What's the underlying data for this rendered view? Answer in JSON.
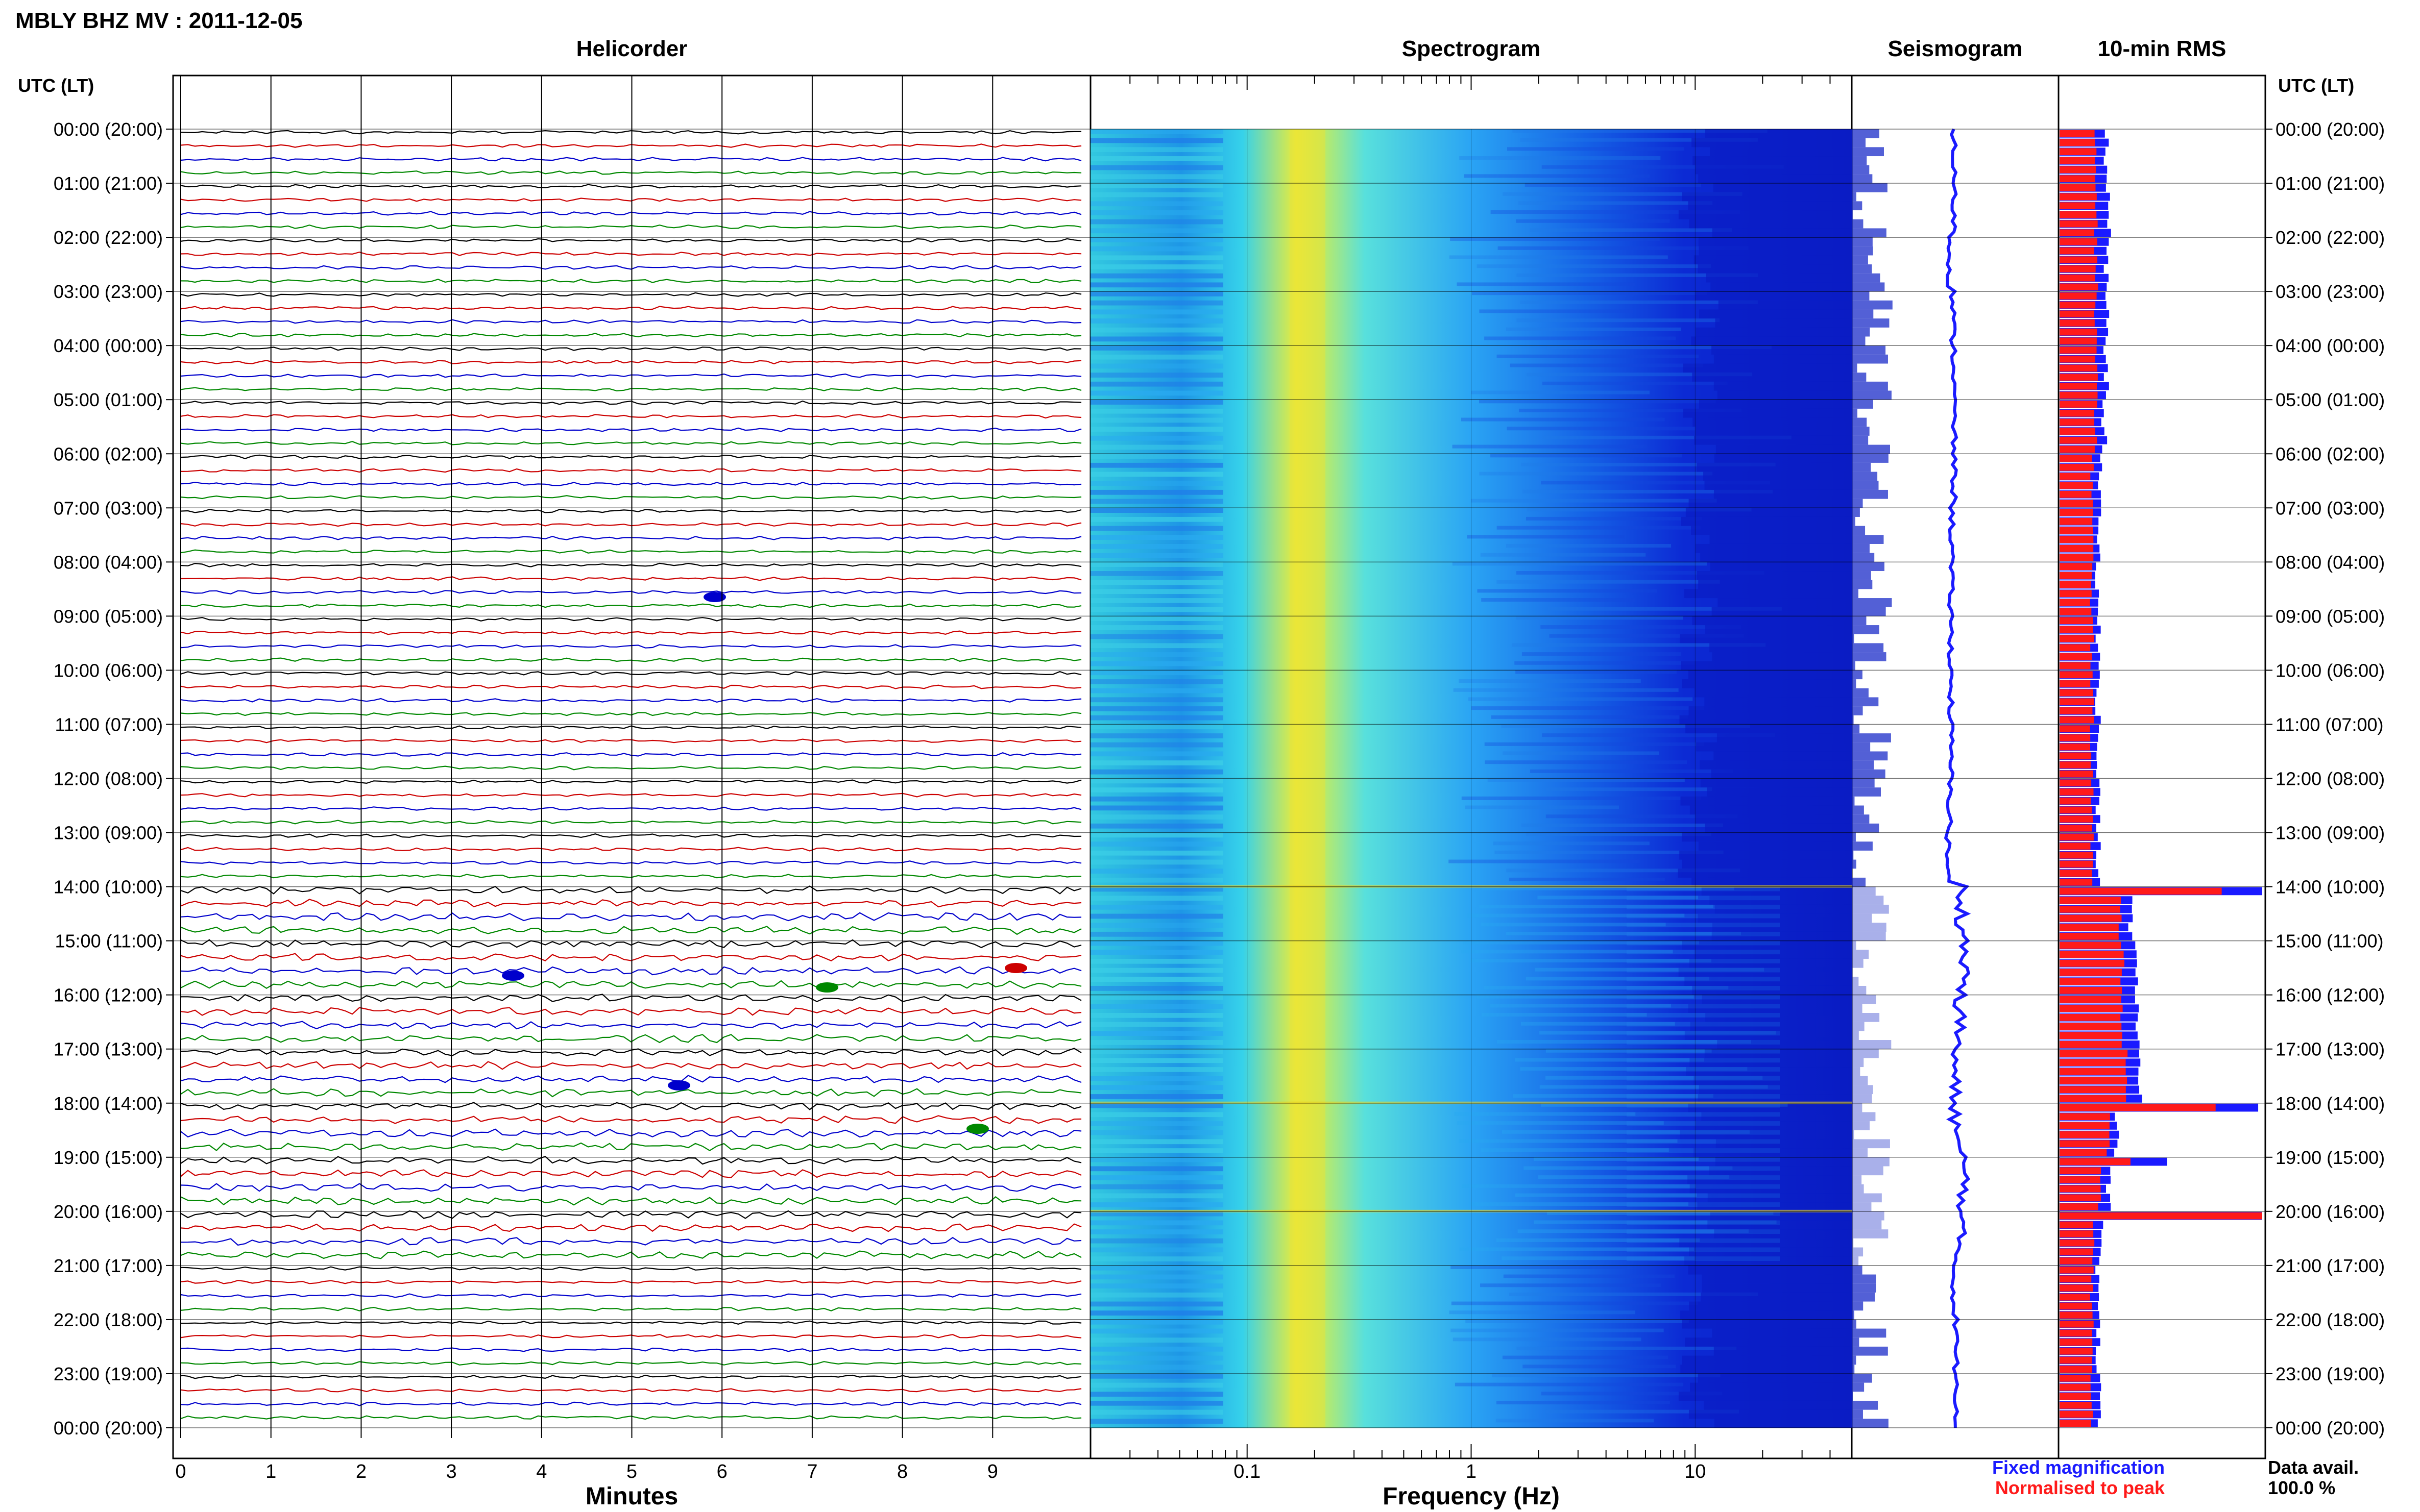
{
  "header": {
    "title": "MBLY BHZ MV : 2011-12-05",
    "utc_lt_label": "UTC (LT)"
  },
  "panels": {
    "helicorder": "Helicorder",
    "spectrogram": "Spectrogram",
    "seismogram": "Seismogram",
    "rms": "10-min RMS"
  },
  "axes": {
    "minutes_label": "Minutes",
    "frequency_label": "Frequency (Hz)"
  },
  "legend": {
    "fixed": "Fixed magnification",
    "normalised": "Normalised to peak",
    "fixed_color": "#1a1aff",
    "normalised_color": "#ff1a1a"
  },
  "data_avail": {
    "label": "Data avail.",
    "value": "100.0 %"
  },
  "chart_data": {
    "type": "heatmap",
    "time_labels": [
      "00:00 (20:00)",
      "01:00 (21:00)",
      "02:00 (22:00)",
      "03:00 (23:00)",
      "04:00 (00:00)",
      "05:00 (01:00)",
      "06:00 (02:00)",
      "07:00 (03:00)",
      "08:00 (04:00)",
      "09:00 (05:00)",
      "10:00 (06:00)",
      "11:00 (07:00)",
      "12:00 (08:00)",
      "13:00 (09:00)",
      "14:00 (10:00)",
      "15:00 (11:00)",
      "16:00 (12:00)",
      "17:00 (13:00)",
      "18:00 (14:00)",
      "19:00 (15:00)",
      "20:00 (16:00)",
      "21:00 (17:00)",
      "22:00 (18:00)",
      "23:00 (19:00)",
      "00:00 (20:00)"
    ],
    "minutes_ticks": [
      "0",
      "1",
      "2",
      "3",
      "4",
      "5",
      "6",
      "7",
      "8",
      "9"
    ],
    "freq_ticks": [
      "0.1",
      "1",
      "10"
    ],
    "freq_range_hz": [
      0.02,
      50
    ],
    "helicorder_trace_colors": [
      "#000000",
      "#cc0000",
      "#0000cc",
      "#008800"
    ],
    "rms_fixed_hourly": [
      0.23,
      0.24,
      0.23,
      0.23,
      0.23,
      0.22,
      0.2,
      0.19,
      0.19,
      0.19,
      0.19,
      0.19,
      0.19,
      0.19,
      0.35,
      0.38,
      0.38,
      0.4,
      0.28,
      0.24,
      0.2,
      0.19,
      0.19,
      0.19
    ],
    "rms_normalised_hourly": [
      0.18,
      0.18,
      0.18,
      0.18,
      0.18,
      0.18,
      0.16,
      0.16,
      0.16,
      0.16,
      0.16,
      0.16,
      0.16,
      0.16,
      0.3,
      0.31,
      0.31,
      0.33,
      0.24,
      0.2,
      0.17,
      0.16,
      0.16,
      0.16
    ],
    "rms_peaks": [
      {
        "time_hours": 14.0,
        "fixed": 1.0,
        "normalised": 0.8
      },
      {
        "time_hours": 18.0,
        "fixed": 0.98,
        "normalised": 0.77
      },
      {
        "time_hours": 19.0,
        "fixed": 0.53,
        "normalised": 0.35
      },
      {
        "time_hours": 20.0,
        "fixed": 1.0,
        "normalised": 1.0
      }
    ],
    "seismogram_offset_hourly": [
      0.0,
      0.0,
      -0.04,
      -0.01,
      0.0,
      0.0,
      0.0,
      -0.02,
      -0.03,
      -0.03,
      -0.03,
      -0.03,
      -0.04,
      -0.06,
      0.08,
      0.1,
      0.05,
      0.0,
      0.02,
      0.1,
      0.05,
      0.0,
      0.02,
      0.03
    ]
  }
}
